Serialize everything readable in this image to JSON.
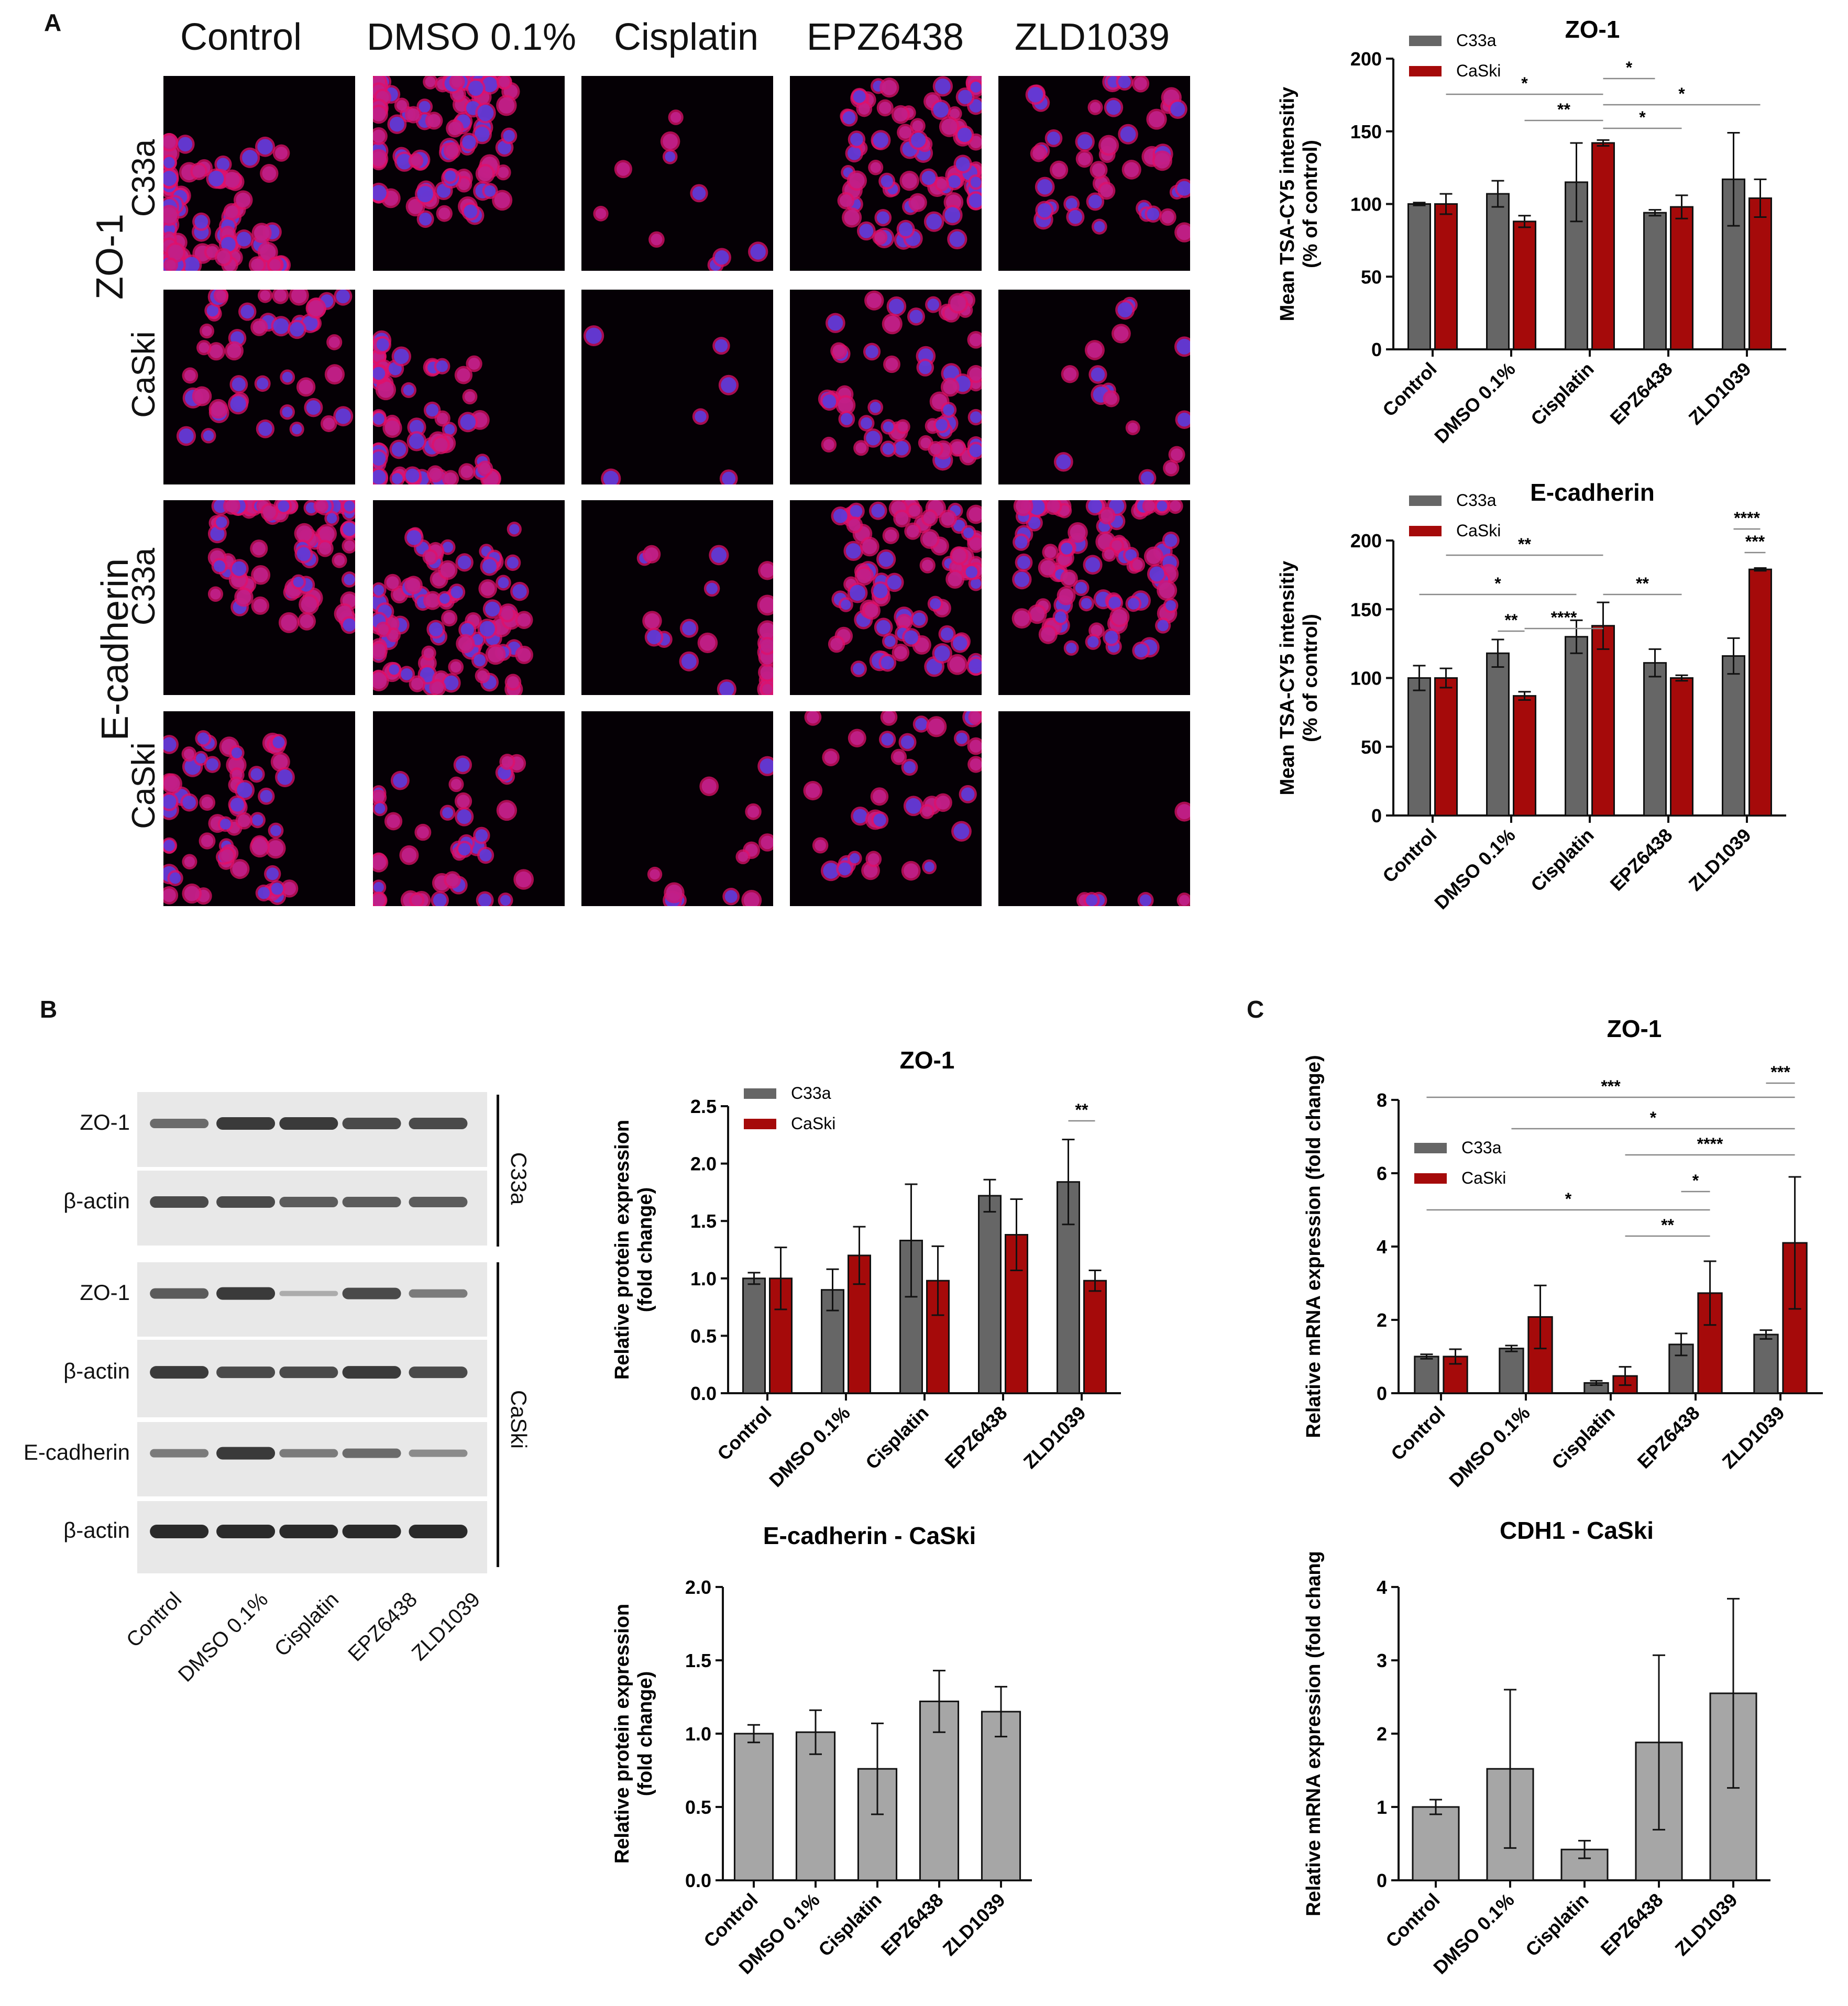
{
  "panels": {
    "A": "A",
    "B": "B",
    "C": "C"
  },
  "micrographs": {
    "columns": [
      "Control",
      "DMSO 0.1%",
      "Cisplatin",
      "EPZ6438",
      "ZLD1039"
    ],
    "stains": [
      "ZO-1",
      "E-cadherin"
    ],
    "rows": [
      "C33a",
      "CaSki",
      "C33a",
      "CaSki"
    ]
  },
  "western_blot": {
    "rows": [
      "ZO-1",
      "β-actin",
      "ZO-1",
      "β-actin",
      "E-cadherin",
      "β-actin"
    ],
    "cell_lines": [
      "C33a",
      "CaSki"
    ],
    "lanes": [
      "Control",
      "DMSO 0.1%",
      "Cisplatin",
      "EPZ6438",
      "ZLD1039"
    ]
  },
  "colors": {
    "c33a": "#666666",
    "caski": "#a50a0a",
    "single": "#a6a6a6",
    "nucleus": "#5a3cdc",
    "membrane": "#e0106a"
  },
  "chart_data": [
    {
      "id": "a-zo1",
      "type": "bar",
      "title": "ZO-1",
      "ylabel": [
        "Mean TSA-CY5 intensitiy",
        "(% of control)"
      ],
      "ylim": [
        0,
        200
      ],
      "yticks": [
        0,
        50,
        100,
        150,
        200
      ],
      "categories": [
        "Control",
        "DMSO 0.1%",
        "Cisplatin",
        "EPZ6438",
        "ZLD1039"
      ],
      "series": [
        {
          "name": "C33a",
          "values": [
            100,
            107,
            115,
            94,
            117
          ],
          "errors": [
            1,
            9,
            27,
            2,
            32
          ]
        },
        {
          "name": "CaSki",
          "values": [
            100,
            88,
            142,
            98,
            104
          ],
          "errors": [
            7,
            4,
            2,
            8,
            13
          ]
        }
      ],
      "legend": "top-left",
      "significance": [
        {
          "label": "*",
          "from": [
            0,
            1
          ],
          "to": [
            2,
            1
          ]
        },
        {
          "label": "*",
          "from": [
            2,
            1
          ],
          "to": [
            3,
            0
          ]
        },
        {
          "label": "**",
          "from": [
            1,
            1
          ],
          "to": [
            2,
            1
          ]
        },
        {
          "label": "*",
          "from": [
            2,
            1
          ],
          "to": [
            4,
            1
          ]
        },
        {
          "label": "*",
          "from": [
            2,
            1
          ],
          "to": [
            3,
            1
          ]
        }
      ]
    },
    {
      "id": "a-ecad",
      "type": "bar",
      "title": "E-cadherin",
      "ylabel": [
        "Mean TSA-CY5 intensitiy",
        "(% of control)"
      ],
      "ylim": [
        0,
        200
      ],
      "yticks": [
        0,
        50,
        100,
        150,
        200
      ],
      "categories": [
        "Control",
        "DMSO 0.1%",
        "Cisplatin",
        "EPZ6438",
        "ZLD1039"
      ],
      "series": [
        {
          "name": "C33a",
          "values": [
            100,
            118,
            130,
            111,
            116
          ],
          "errors": [
            9,
            10,
            12,
            10,
            13
          ]
        },
        {
          "name": "CaSki",
          "values": [
            100,
            87,
            138,
            100,
            179
          ],
          "errors": [
            7,
            3,
            17,
            2,
            1
          ]
        }
      ],
      "legend": "top-left",
      "significance": [
        {
          "label": "****",
          "from": [
            4,
            0
          ],
          "to": [
            4,
            1
          ]
        },
        {
          "label": "***",
          "from": [
            4,
            1
          ],
          "to": [
            4,
            1
          ]
        },
        {
          "label": "**",
          "from": [
            0,
            1
          ],
          "to": [
            2,
            1
          ]
        },
        {
          "label": "*",
          "from": [
            0,
            0
          ],
          "to": [
            2,
            0
          ]
        },
        {
          "label": "****",
          "from": [
            1,
            1
          ],
          "to": [
            2,
            1
          ]
        },
        {
          "label": "**",
          "from": [
            2,
            1
          ],
          "to": [
            3,
            1
          ]
        },
        {
          "label": "**",
          "from": [
            1,
            0
          ],
          "to": [
            1,
            1
          ]
        }
      ]
    },
    {
      "id": "b-zo1",
      "type": "bar",
      "title": "ZO-1",
      "ylabel": [
        "Relative protein expression",
        "(fold change)"
      ],
      "ylim": [
        0,
        2.5
      ],
      "yticks": [
        0.0,
        0.5,
        1.0,
        1.5,
        2.0,
        2.5
      ],
      "categories": [
        "Control",
        "DMSO 0.1%",
        "Cisplatin",
        "EPZ6438",
        "ZLD1039"
      ],
      "series": [
        {
          "name": "C33a",
          "values": [
            1.0,
            0.9,
            1.33,
            1.72,
            1.84
          ],
          "errors": [
            0.05,
            0.18,
            0.49,
            0.14,
            0.37
          ]
        },
        {
          "name": "CaSki",
          "values": [
            1.0,
            1.2,
            0.98,
            1.38,
            0.98
          ],
          "errors": [
            0.27,
            0.25,
            0.3,
            0.31,
            0.09
          ]
        }
      ],
      "legend": "top-left",
      "significance": [
        {
          "label": "**",
          "from": [
            4,
            0
          ],
          "to": [
            4,
            1
          ]
        }
      ]
    },
    {
      "id": "b-ecad",
      "type": "bar",
      "title": "E-cadherin - CaSki",
      "ylabel": [
        "Relative protein expression",
        "(fold change)"
      ],
      "ylim": [
        0,
        2.0
      ],
      "yticks": [
        0.0,
        0.5,
        1.0,
        1.5,
        2.0
      ],
      "categories": [
        "Control",
        "DMSO 0.1%",
        "Cisplatin",
        "EPZ6438",
        "ZLD1039"
      ],
      "series": [
        {
          "values": [
            1.0,
            1.01,
            0.76,
            1.22,
            1.15
          ],
          "errors": [
            0.06,
            0.15,
            0.31,
            0.21,
            0.17
          ]
        }
      ]
    },
    {
      "id": "c-zo1",
      "type": "bar",
      "title": "ZO-1",
      "ylabel": [
        "Relative mRNA expression (fold change)"
      ],
      "ylim": [
        0,
        8
      ],
      "yticks": [
        0,
        2,
        4,
        6,
        8
      ],
      "categories": [
        "Control",
        "DMSO 0.1%",
        "Cisplatin",
        "EPZ6438",
        "ZLD1039"
      ],
      "series": [
        {
          "name": "C33a",
          "values": [
            1.0,
            1.22,
            0.28,
            1.33,
            1.6
          ],
          "errors": [
            0.06,
            0.08,
            0.06,
            0.3,
            0.12
          ]
        },
        {
          "name": "CaSki",
          "values": [
            1.0,
            2.08,
            0.47,
            2.73,
            4.1
          ],
          "errors": [
            0.2,
            0.86,
            0.25,
            0.87,
            1.8
          ]
        }
      ],
      "legend": "top-left",
      "significance": [
        {
          "label": "***",
          "from": [
            4,
            0
          ],
          "to": [
            4,
            1
          ]
        },
        {
          "label": "***",
          "from": [
            0,
            0
          ],
          "to": [
            4,
            1
          ]
        },
        {
          "label": "*",
          "from": [
            1,
            0
          ],
          "to": [
            4,
            1
          ]
        },
        {
          "label": "****",
          "from": [
            2,
            1
          ],
          "to": [
            4,
            1
          ]
        },
        {
          "label": "*",
          "from": [
            3,
            0
          ],
          "to": [
            3,
            1
          ]
        },
        {
          "label": "*",
          "from": [
            0,
            0
          ],
          "to": [
            3,
            1
          ]
        },
        {
          "label": "**",
          "from": [
            2,
            1
          ],
          "to": [
            3,
            1
          ]
        }
      ]
    },
    {
      "id": "c-cdh1",
      "type": "bar",
      "title": "CDH1 - CaSki",
      "ylabel": [
        "Relative mRNA expression (fold chang"
      ],
      "ylim": [
        0,
        4
      ],
      "yticks": [
        0,
        1,
        2,
        3,
        4
      ],
      "categories": [
        "Control",
        "DMSO 0.1%",
        "Cisplatin",
        "EPZ6438",
        "ZLD1039"
      ],
      "series": [
        {
          "values": [
            1.0,
            1.52,
            0.42,
            1.88,
            2.55
          ],
          "errors": [
            0.1,
            1.08,
            0.12,
            1.19,
            1.29
          ]
        }
      ]
    }
  ]
}
